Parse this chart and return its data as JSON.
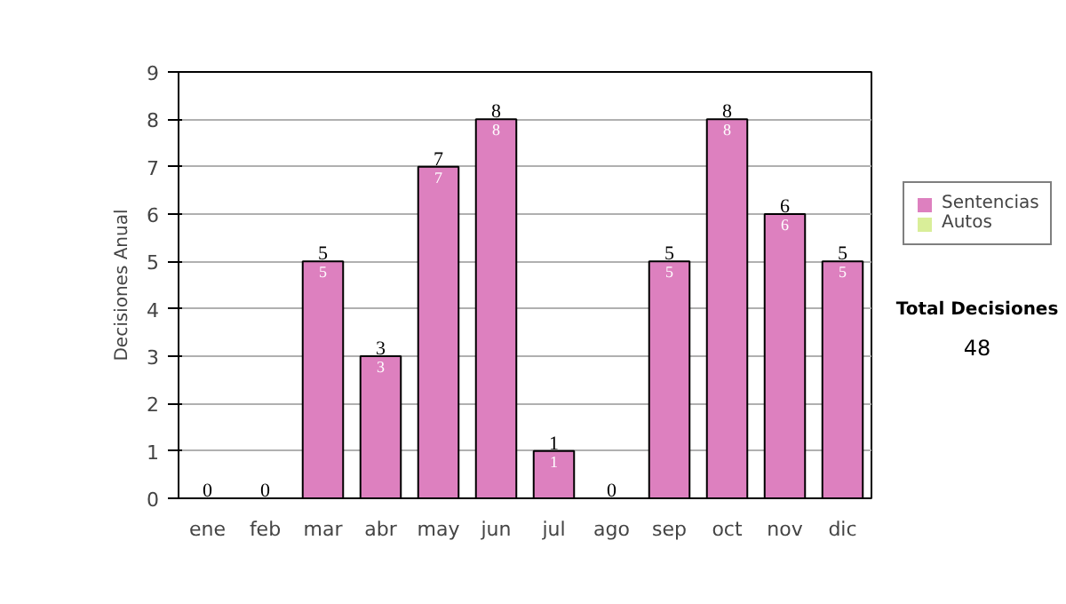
{
  "chart_data": {
    "type": "bar",
    "stacked": true,
    "ylabel": "Decisiones Anual",
    "categories": [
      "ene",
      "feb",
      "mar",
      "abr",
      "may",
      "jun",
      "jul",
      "ago",
      "sep",
      "oct",
      "nov",
      "dic"
    ],
    "series": [
      {
        "name": "Sentencias",
        "color": "#dd80bf",
        "values": [
          0,
          0,
          5,
          3,
          7,
          8,
          1,
          0,
          5,
          8,
          6,
          5
        ],
        "value_labels": [
          null,
          null,
          "5",
          "3",
          "7",
          "8",
          "1",
          null,
          "5",
          "8",
          "6",
          "5"
        ]
      },
      {
        "name": "Autos",
        "color": "#d9ee99",
        "values": [
          0,
          0,
          0,
          0,
          0,
          0,
          0,
          0,
          0,
          0,
          0,
          0
        ]
      }
    ],
    "totals": [
      "0",
      "0",
      "5",
      "3",
      "7",
      "8",
      "1",
      "0",
      "5",
      "8",
      "6",
      "5"
    ],
    "ylim": [
      0,
      9
    ],
    "yticks": [
      0,
      1,
      2,
      3,
      4,
      5,
      6,
      7,
      8,
      9
    ],
    "grid": "y",
    "legend": "right",
    "annotations": [
      "Total Decisiones",
      "48"
    ]
  }
}
